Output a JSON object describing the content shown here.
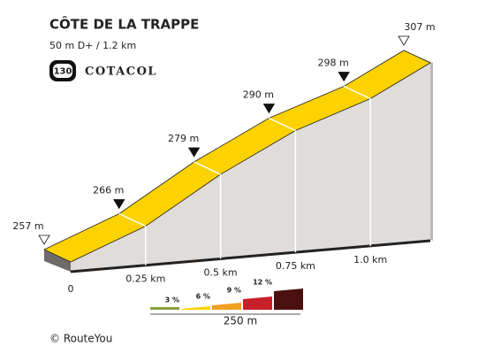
{
  "chart_data": {
    "type": "profile",
    "title": "CÔTE DE LA TRAPPE",
    "subtitle": "50 m D+ / 1.2 km",
    "badge": {
      "number": "130",
      "text": "COTACOL"
    },
    "x": [
      0,
      0.25,
      0.5,
      0.75,
      1.0,
      1.2
    ],
    "values": [
      257,
      266,
      279,
      290,
      298,
      307
    ],
    "value_labels": [
      "257 m",
      "266 m",
      "279 m",
      "290 m",
      "298 m",
      "307 m"
    ],
    "color": "#fcd200",
    "xticks": [
      {
        "value": 0,
        "label": "0"
      },
      {
        "value": 0.25,
        "label": "0.25 km"
      },
      {
        "value": 0.5,
        "label": "0.5 km"
      },
      {
        "value": 0.75,
        "label": "0.75 km"
      },
      {
        "value": 1.0,
        "label": "1.0 km"
      }
    ],
    "gradient_legend": {
      "labels": [
        "3 %",
        "6 %",
        "9 %",
        "12 %"
      ],
      "colors": [
        "#8aa040",
        "#fcd200",
        "#f0a020",
        "#c8202a",
        "#4a1010"
      ],
      "scale_label": "250 m"
    },
    "footer": "© RouteYou"
  }
}
